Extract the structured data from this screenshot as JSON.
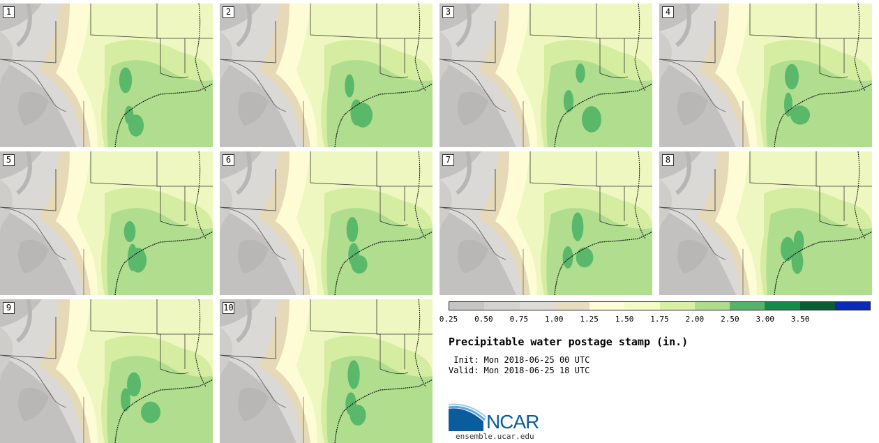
{
  "panels": [
    {
      "label": "1",
      "heavy": [
        [
          40,
          50,
          55,
          55
        ],
        [
          55,
          70,
          45,
          40
        ],
        [
          45,
          75,
          55,
          55
        ]
      ]
    },
    {
      "label": "2",
      "heavy": [
        [
          46,
          58,
          40,
          50
        ],
        [
          66,
          66,
          60,
          56
        ],
        [
          55,
          60,
          70,
          62
        ]
      ]
    },
    {
      "label": "3",
      "heavy": [
        [
          62,
          40,
          40,
          42
        ],
        [
          55,
          50,
          50,
          48
        ],
        [
          68,
          66,
          70,
          66
        ]
      ]
    },
    {
      "label": "4",
      "heavy": [
        [
          50,
          45,
          60,
          55
        ],
        [
          55,
          55,
          42,
          52
        ],
        [
          52,
          60,
          70,
          48
        ]
      ]
    },
    {
      "label": "5",
      "heavy": [
        [
          46,
          55,
          50,
          45
        ],
        [
          60,
          62,
          48,
          58
        ],
        [
          48,
          56,
          60,
          62
        ]
      ]
    },
    {
      "label": "6",
      "heavy": [
        [
          50,
          52,
          50,
          54
        ],
        [
          62,
          58,
          54,
          50
        ],
        [
          50,
          62,
          58,
          46
        ]
      ]
    },
    {
      "label": "7",
      "heavy": [
        [
          58,
          48,
          50,
          62
        ],
        [
          54,
          62,
          52,
          48
        ],
        [
          58,
          52,
          62,
          50
        ]
      ]
    },
    {
      "label": "8",
      "heavy": [
        [
          60,
          70,
          44,
          50
        ],
        [
          54,
          50,
          70,
          52
        ],
        [
          48,
          58,
          42,
          62
        ]
      ]
    },
    {
      "label": "9",
      "heavy": [
        [
          52,
          62,
          60,
          52
        ],
        [
          50,
          54,
          48,
          50
        ],
        [
          66,
          62,
          70,
          54
        ]
      ]
    },
    {
      "label": "10",
      "heavy": [
        [
          52,
          48,
          52,
          62
        ],
        [
          58,
          60,
          54,
          50
        ],
        [
          48,
          66,
          58,
          52
        ]
      ]
    }
  ],
  "colorbar": {
    "colors": [
      "#c6c5c4",
      "#d3d2d0",
      "#dedcd7",
      "#e7dcbe",
      "#fffed8",
      "#f4fbc6",
      "#d9efa5",
      "#aedc8f",
      "#55b46a",
      "#17894a",
      "#0c5d31",
      "#0a2bb5"
    ],
    "ticks": [
      "0.25",
      "0.50",
      "0.75",
      "1.00",
      "1.25",
      "1.50",
      "1.75",
      "2.00",
      "2.50",
      "3.00",
      "3.50"
    ]
  },
  "title": "Precipitable water postage stamp (in.)",
  "init_line": " Init: Mon 2018-06-25 00 UTC",
  "valid_line": "Valid: Mon 2018-06-25 18 UTC",
  "logo_text": "NCAR",
  "site": "ensemble.ucar.edu"
}
